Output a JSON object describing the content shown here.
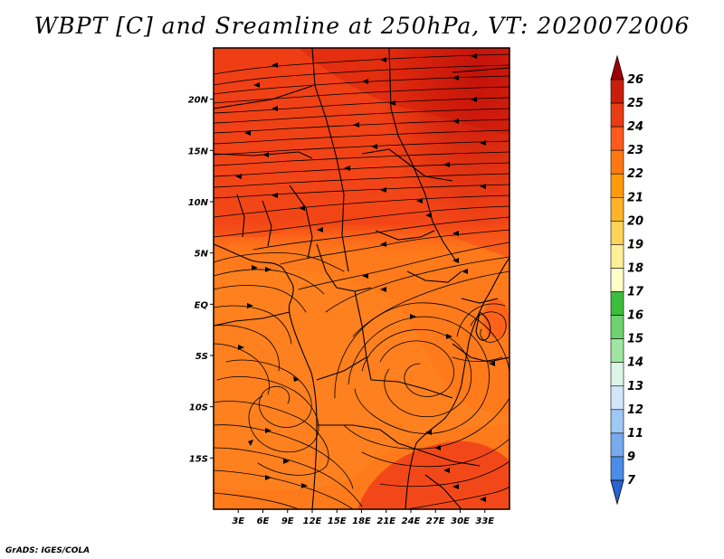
{
  "title": "WBPT [C] and Sreamline at 250hPa, VT: 2020072006",
  "credit": "GrADS: IGES/COLA",
  "map": {
    "lon_range": [
      0,
      36
    ],
    "lat_range": [
      -20,
      25
    ],
    "lon_ticks": [
      "3E",
      "6E",
      "9E",
      "12E",
      "15E",
      "18E",
      "21E",
      "24E",
      "27E",
      "30E",
      "33E"
    ],
    "lat_ticks": [
      "20N",
      "15N",
      "10N",
      "5N",
      "EQ",
      "5S",
      "10S",
      "15S"
    ],
    "fill_colors": {
      "dominant": "#ff7a1a",
      "warm": "#ff4a14",
      "hot": "#e82b0e",
      "hottest": "#c4120a",
      "cooler": "#ff8a22"
    },
    "streamline_color": "#000000",
    "border_color": "#000000"
  },
  "colorbar": {
    "levels": [
      "26",
      "25",
      "24",
      "23",
      "22",
      "21",
      "20",
      "19",
      "18",
      "17",
      "16",
      "15",
      "14",
      "13",
      "12",
      "11",
      "9",
      "7"
    ],
    "colors": [
      "#a00000",
      "#c81e0a",
      "#e83c14",
      "#ff5a1e",
      "#ff7814",
      "#ff9a0a",
      "#ffb428",
      "#ffd25a",
      "#fff096",
      "#ffffc8",
      "#3cbe3c",
      "#6ed26e",
      "#a0e6a0",
      "#dcf5e6",
      "#d2e6fa",
      "#a0c8f5",
      "#78aaf0",
      "#4b8ce6",
      "#2864d2"
    ]
  }
}
